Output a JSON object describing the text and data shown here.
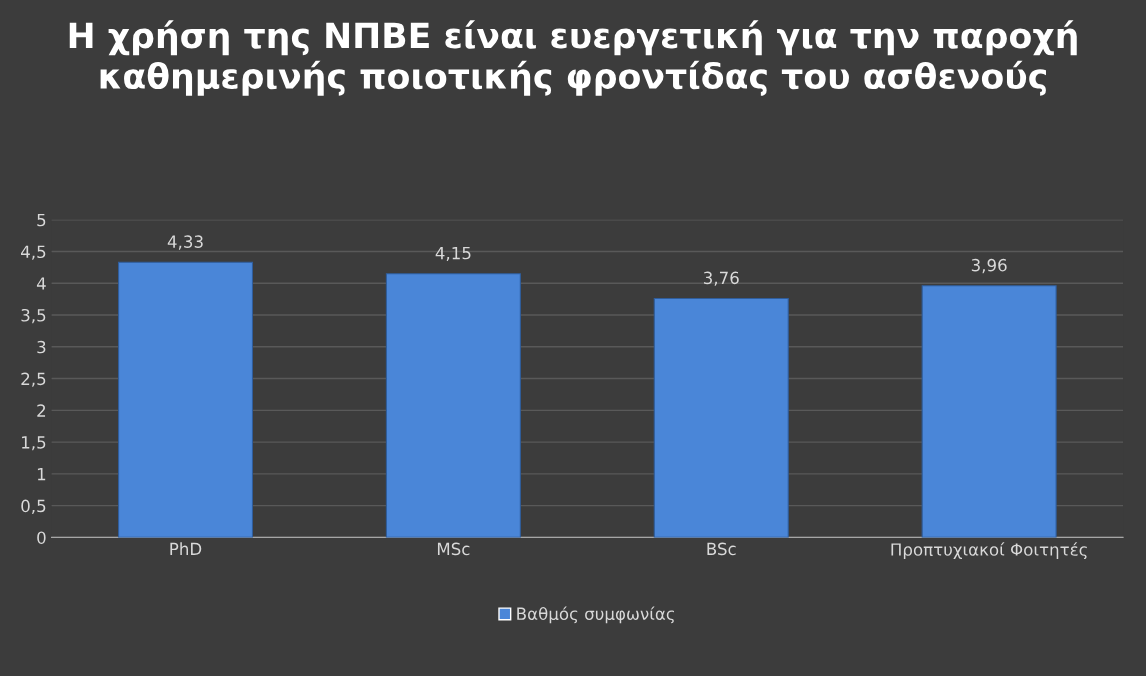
{
  "chart_data": {
    "type": "bar",
    "title": "Η χρήση της ΝΠΒΕ είναι ευεργετική για την παροχή καθημερινής ποιοτικής φροντίδας του ασθενούς",
    "categories": [
      "PhD",
      "MSc",
      "BSc",
      "Προπτυχιακοί Φοιτητές"
    ],
    "series": [
      {
        "name": "Βαθμός συμφωνίας",
        "color": "#4a86d8",
        "values": [
          4.33,
          4.15,
          3.76,
          3.96
        ],
        "value_labels": [
          "4,33",
          "4,15",
          "3,76",
          "3,96"
        ]
      }
    ],
    "ylim": [
      0,
      5
    ],
    "yticks": [
      0,
      {
        "value": 0.5,
        "label": "0,5"
      },
      1,
      {
        "value": 1.5,
        "label": "1,5"
      },
      2,
      {
        "value": 2.5,
        "label": "2,5"
      },
      3,
      {
        "value": 3.5,
        "label": "3,5"
      },
      4,
      {
        "value": 4.5,
        "label": "4,5"
      },
      5
    ],
    "grid": "y",
    "legend": "bottom"
  }
}
